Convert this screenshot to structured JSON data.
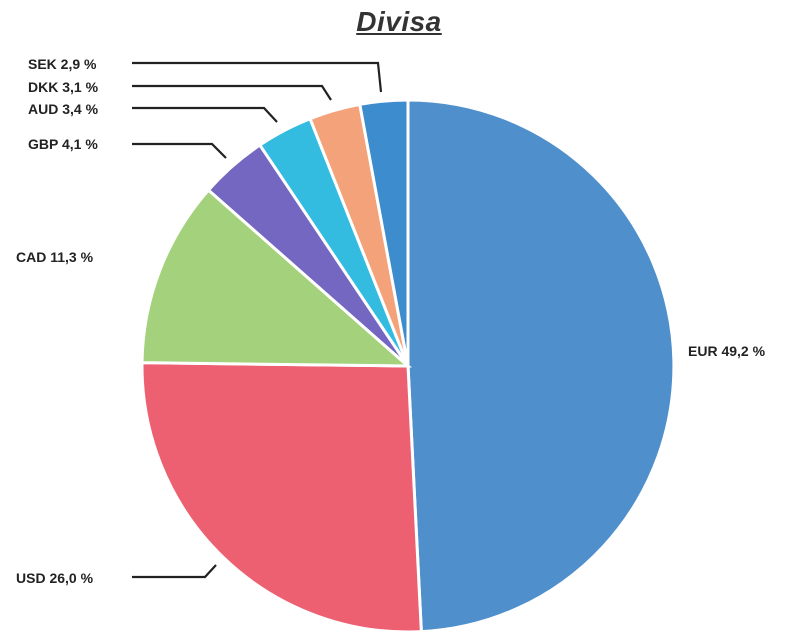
{
  "chart_data": {
    "type": "pie",
    "title": "Divisa",
    "start": "top",
    "direction": "clockwise",
    "slices": [
      {
        "name": "EUR",
        "value": 49.2,
        "label": "EUR 49,2 %",
        "color": "#4f8fcc"
      },
      {
        "name": "USD",
        "value": 26.0,
        "label": "USD 26,0 %",
        "color": "#ec6072"
      },
      {
        "name": "CAD",
        "value": 11.3,
        "label": "CAD 11,3 %",
        "color": "#a4d17c"
      },
      {
        "name": "GBP",
        "value": 4.1,
        "label": "GBP 4,1 %",
        "color": "#7367c2"
      },
      {
        "name": "AUD",
        "value": 3.4,
        "label": "AUD 3,4 %",
        "color": "#33bbe0"
      },
      {
        "name": "DKK",
        "value": 3.1,
        "label": "DKK 3,1 %",
        "color": "#f4a27a"
      },
      {
        "name": "SEK",
        "value": 2.9,
        "label": "SEK 2,9 %",
        "color": "#3d8ccd"
      }
    ]
  }
}
